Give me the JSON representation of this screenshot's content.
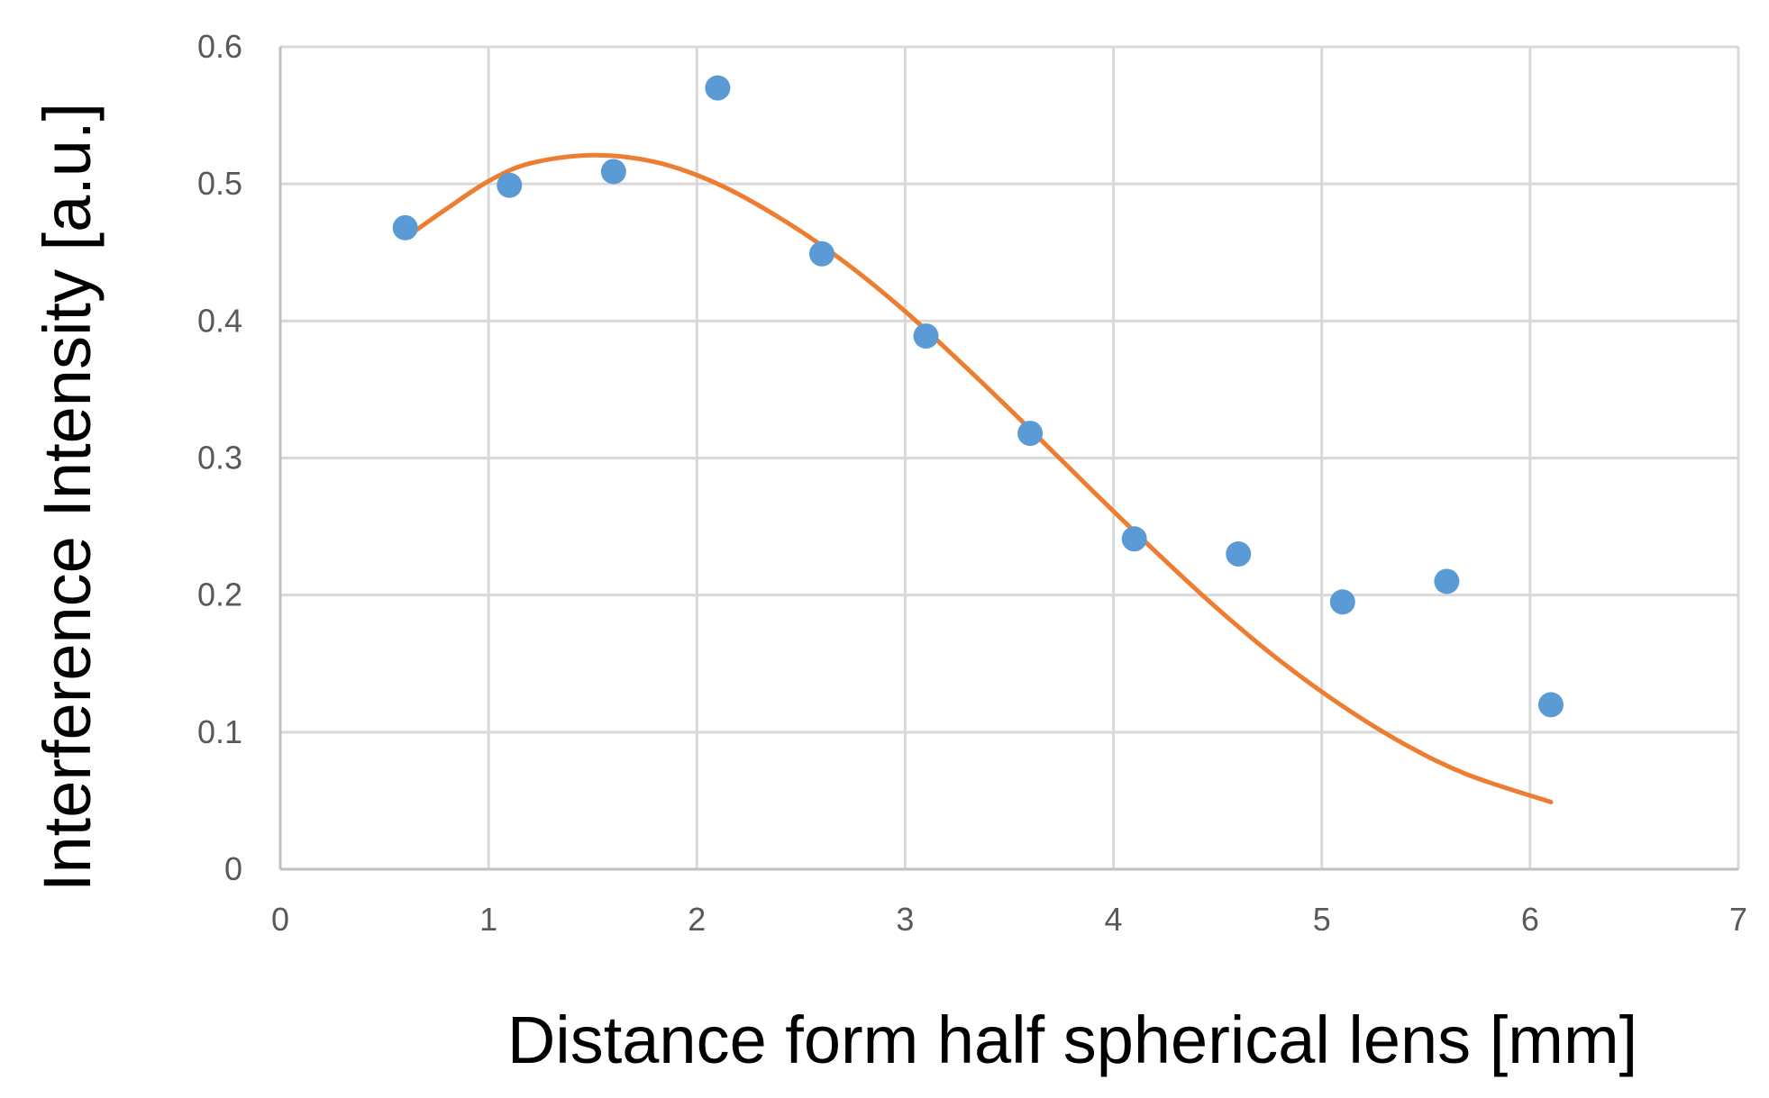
{
  "chart_data": {
    "type": "scatter",
    "title": "",
    "xlabel": "Distance form half spherical lens [mm]",
    "ylabel": "Interference Intensity [a.u.]",
    "xlim": [
      0,
      7
    ],
    "ylim": [
      0,
      0.6
    ],
    "x_ticks": [
      0,
      1,
      2,
      3,
      4,
      5,
      6,
      7
    ],
    "x_tick_labels": [
      "0",
      "1",
      "2",
      "3",
      "4",
      "5",
      "6",
      "7"
    ],
    "y_ticks": [
      0,
      0.1,
      0.2,
      0.3,
      0.4,
      0.5,
      0.6
    ],
    "y_tick_labels": [
      "0",
      "0.1",
      "0.2",
      "0.3",
      "0.4",
      "0.5",
      "0.6"
    ],
    "grid": true,
    "legend": "none",
    "series": [
      {
        "kind": "scatter",
        "color": "#5b9bd5",
        "x": [
          0.6,
          1.1,
          1.6,
          2.1,
          2.6,
          3.1,
          3.6,
          4.1,
          4.6,
          5.1,
          5.6,
          6.1
        ],
        "y": [
          0.468,
          0.499,
          0.509,
          0.57,
          0.449,
          0.389,
          0.318,
          0.241,
          0.23,
          0.195,
          0.21,
          0.12
        ]
      },
      {
        "kind": "line",
        "style": "smooth",
        "color": "#ed7d31",
        "x": [
          0.65,
          0.8,
          1.0,
          1.2,
          1.5,
          1.8,
          2.1,
          2.4,
          2.7,
          3.0,
          3.3,
          3.6,
          3.9,
          4.2,
          4.5,
          4.8,
          5.1,
          5.4,
          5.7,
          6.1
        ],
        "y": [
          0.466,
          0.482,
          0.502,
          0.515,
          0.521,
          0.516,
          0.5,
          0.475,
          0.444,
          0.407,
          0.365,
          0.321,
          0.276,
          0.232,
          0.19,
          0.152,
          0.119,
          0.091,
          0.069,
          0.049
        ]
      }
    ]
  }
}
